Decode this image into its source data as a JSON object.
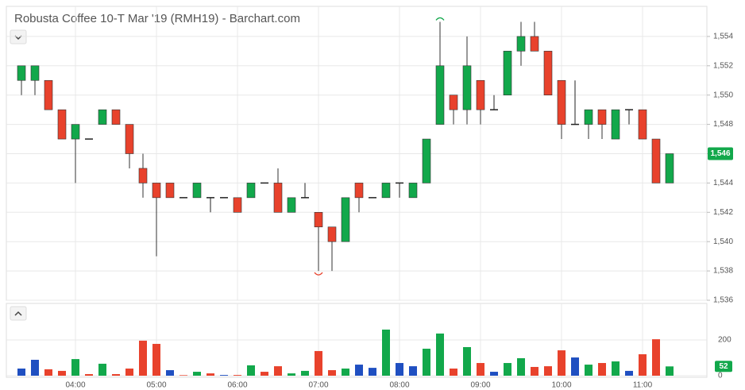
{
  "chart_data": [
    {
      "type": "candlestick",
      "title": "Robusta Coffee 10-T Mar '19 (RMH19) - Barchart.com",
      "categories": [
        null,
        null,
        null,
        null,
        "04:00",
        null,
        null,
        null,
        null,
        null,
        "05:00",
        null,
        null,
        null,
        null,
        null,
        "06:00",
        null,
        null,
        null,
        null,
        null,
        "07:00",
        null,
        null,
        null,
        null,
        null,
        "08:00",
        null,
        null,
        null,
        null,
        null,
        "09:00",
        null,
        null,
        null,
        null,
        null,
        "10:00",
        null,
        null,
        null,
        null,
        null,
        "11:00",
        null,
        null
      ],
      "open": [
        1551,
        1551,
        1551,
        1549,
        1547,
        1547,
        1548,
        1549,
        1548,
        1545,
        1544,
        1544,
        1543,
        1543,
        1543,
        1543,
        1543,
        1543,
        1544,
        1544,
        1542,
        1543,
        1542,
        1541,
        1540,
        1544,
        1543,
        1543,
        1544,
        1543,
        1544,
        1548,
        1550,
        1549,
        1551,
        1549,
        1550,
        1553,
        1554,
        1553,
        1551,
        1548,
        1548,
        1549,
        1547,
        1549,
        1549,
        1547,
        1544
      ],
      "high": [
        1552,
        1552,
        1551,
        1549,
        1548,
        1547,
        1549,
        1549,
        1548,
        1546,
        1544,
        1544,
        1543,
        1544,
        1543,
        1543,
        1543,
        1544,
        1544,
        1545,
        1543,
        1544,
        1542,
        1541,
        1543,
        1544,
        1543,
        1544,
        1544,
        1544,
        1547,
        1555,
        1550,
        1554,
        1551,
        1550,
        1553,
        1555,
        1555,
        1553,
        1551,
        1551,
        1549,
        1549,
        1549,
        1549,
        1549,
        1547,
        1546
      ],
      "low": [
        1550,
        1550,
        1549,
        1547,
        1544,
        1547,
        1548,
        1548,
        1545,
        1543,
        1539,
        1543,
        1543,
        1543,
        1542,
        1543,
        1542,
        1543,
        1544,
        1542,
        1542,
        1543,
        1538,
        1538,
        1540,
        1542,
        1543,
        1543,
        1543,
        1543,
        1544,
        1548,
        1548,
        1548,
        1548,
        1549,
        1550,
        1552,
        1553,
        1550,
        1547,
        1548,
        1547,
        1547,
        1547,
        1548,
        1547,
        1544,
        1544
      ],
      "close": [
        1552,
        1552,
        1549,
        1547,
        1548,
        1547,
        1549,
        1548,
        1546,
        1544,
        1543,
        1543,
        1543,
        1544,
        1543,
        1543,
        1542,
        1544,
        1544,
        1542,
        1543,
        1543,
        1541,
        1540,
        1543,
        1543,
        1543,
        1544,
        1544,
        1544,
        1547,
        1552,
        1549,
        1552,
        1549,
        1549,
        1553,
        1554,
        1553,
        1550,
        1548,
        1548,
        1549,
        1548,
        1549,
        1549,
        1547,
        1544,
        1546
      ],
      "up_color": "#12a84b",
      "down_color": "#e8422c",
      "flat_color": "#222222",
      "ylim": [
        1536,
        1556
      ],
      "yticks": [
        {
          "value": 1536,
          "label": "1,536"
        },
        {
          "value": 1538,
          "label": "1,538"
        },
        {
          "value": 1540,
          "label": "1,540"
        },
        {
          "value": 1542,
          "label": "1,542"
        },
        {
          "value": 1544,
          "label": "1,544"
        },
        {
          "value": 1546,
          "label": "1,546"
        },
        {
          "value": 1548,
          "label": "1,548"
        },
        {
          "value": 1550,
          "label": "1,550"
        },
        {
          "value": 1552,
          "label": "1,552"
        },
        {
          "value": 1554,
          "label": "1,554"
        }
      ],
      "last_price": {
        "value": 1546,
        "label": "1,546"
      },
      "grid": true
    },
    {
      "type": "bar",
      "values": [
        40,
        89,
        36,
        27,
        93,
        9,
        67,
        9,
        40,
        196,
        178,
        31,
        3,
        22,
        13,
        4,
        4,
        58,
        22,
        53,
        13,
        27,
        138,
        31,
        40,
        62,
        44,
        258,
        71,
        53,
        151,
        236,
        40,
        160,
        71,
        22,
        71,
        98,
        49,
        53,
        142,
        102,
        62,
        71,
        80,
        27,
        120,
        204,
        52
      ],
      "colors": [
        "#1f4fc1",
        "#1f4fc1",
        "#e8422c",
        "#e8422c",
        "#12a84b",
        "#e8422c",
        "#12a84b",
        "#e8422c",
        "#e8422c",
        "#e8422c",
        "#e8422c",
        "#1f4fc1",
        "#e8422c",
        "#12a84b",
        "#e8422c",
        "#1f4fc1",
        "#e8422c",
        "#12a84b",
        "#e8422c",
        "#e8422c",
        "#12a84b",
        "#12a84b",
        "#e8422c",
        "#e8422c",
        "#12a84b",
        "#1f4fc1",
        "#1f4fc1",
        "#12a84b",
        "#1f4fc1",
        "#1f4fc1",
        "#12a84b",
        "#12a84b",
        "#e8422c",
        "#12a84b",
        "#e8422c",
        "#1f4fc1",
        "#12a84b",
        "#12a84b",
        "#e8422c",
        "#e8422c",
        "#e8422c",
        "#1f4fc1",
        "#12a84b",
        "#e8422c",
        "#12a84b",
        "#1f4fc1",
        "#e8422c",
        "#e8422c",
        "#12a84b"
      ],
      "ylim": [
        0,
        400
      ],
      "yticks": [
        0,
        200
      ],
      "last_value": 52,
      "last_color": "#12a84b",
      "grid": true
    }
  ]
}
